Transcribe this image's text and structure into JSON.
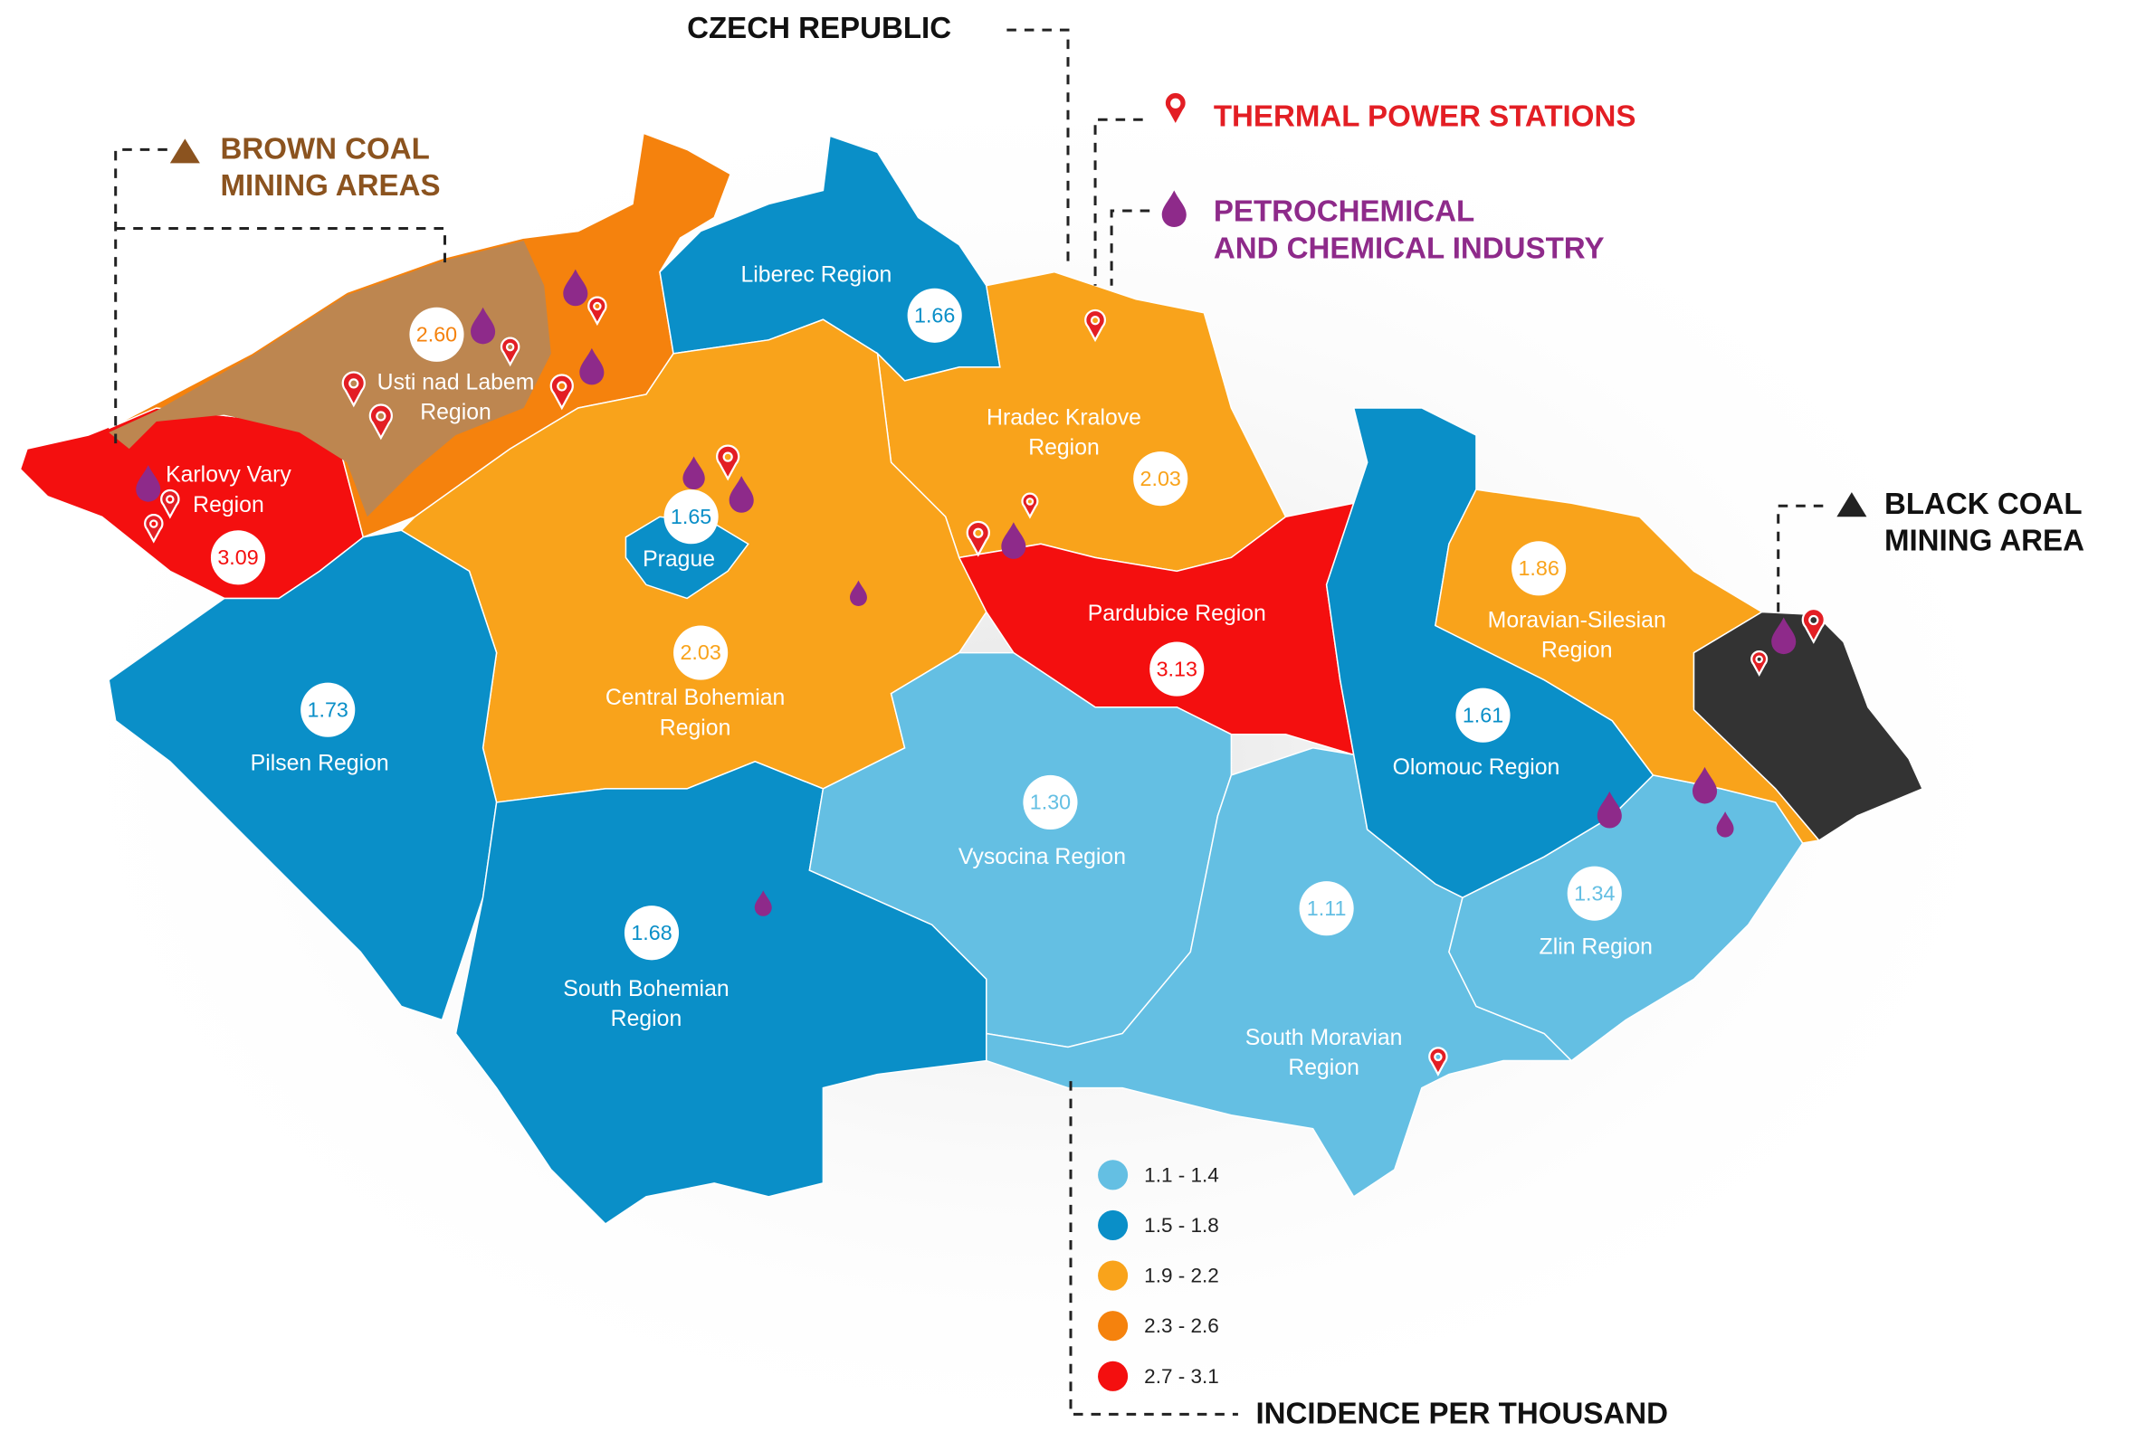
{
  "title": "CZECH REPUBLIC",
  "annotations": {
    "brown_coal": {
      "lines": [
        "BROWN COAL",
        "MINING AREAS"
      ],
      "color": "#8b531f"
    },
    "thermal": {
      "lines": [
        "THERMAL POWER STATIONS"
      ],
      "color": "#e31e24"
    },
    "petrochemical": {
      "lines": [
        "PETROCHEMICAL",
        "AND CHEMICAL INDUSTRY"
      ],
      "color": "#8e2a8a"
    },
    "black_coal": {
      "lines": [
        "BLACK COAL",
        "MINING AREA"
      ],
      "color": "#111111"
    }
  },
  "regions": [
    {
      "name": [
        "Karlovy Vary",
        "Region"
      ],
      "value": "3.09",
      "color": "#f40f0f"
    },
    {
      "name": [
        "Usti nad Labem",
        "Region"
      ],
      "value": "2.60",
      "color": "#f5820d"
    },
    {
      "name": [
        "Liberec Region"
      ],
      "value": "1.66",
      "color": "#0a8fc8"
    },
    {
      "name": [
        "Hradec Kralove",
        "Region"
      ],
      "value": "2.03",
      "color": "#f9a31b"
    },
    {
      "name": [
        "Central Bohemian",
        "Region"
      ],
      "value": "2.03",
      "color": "#f9a31b"
    },
    {
      "name": [
        "Prague"
      ],
      "value": "1.65",
      "color": "#0a8fc8"
    },
    {
      "name": [
        "Pardubice Region"
      ],
      "value": "3.13",
      "color": "#f40f0f"
    },
    {
      "name": [
        "Pilsen Region"
      ],
      "value": "1.73",
      "color": "#0a8fc8"
    },
    {
      "name": [
        "South Bohemian",
        "Region"
      ],
      "value": "1.68",
      "color": "#0a8fc8"
    },
    {
      "name": [
        "Vysocina Region"
      ],
      "value": "1.30",
      "color": "#64bfe3"
    },
    {
      "name": [
        "South Moravian",
        "Region"
      ],
      "value": "1.11",
      "color": "#64bfe3"
    },
    {
      "name": [
        "Zlin Region"
      ],
      "value": "1.34",
      "color": "#64bfe3"
    },
    {
      "name": [
        "Olomouc Region"
      ],
      "value": "1.61",
      "color": "#0a8fc8"
    },
    {
      "name": [
        "Moravian-Silesian",
        "Region"
      ],
      "value": "1.86",
      "color": "#f9a31b"
    }
  ],
  "legend": {
    "title": "INCIDENCE PER THOUSAND",
    "items": [
      {
        "label": "1.1 - 1.4",
        "color": "#64bfe3"
      },
      {
        "label": "1.5 - 1.8",
        "color": "#0a8fc8"
      },
      {
        "label": "1.9 - 2.2",
        "color": "#f9a31b"
      },
      {
        "label": "2.3 - 2.6",
        "color": "#f5820d"
      },
      {
        "label": "2.7 - 3.1",
        "color": "#f40f0f"
      }
    ]
  }
}
